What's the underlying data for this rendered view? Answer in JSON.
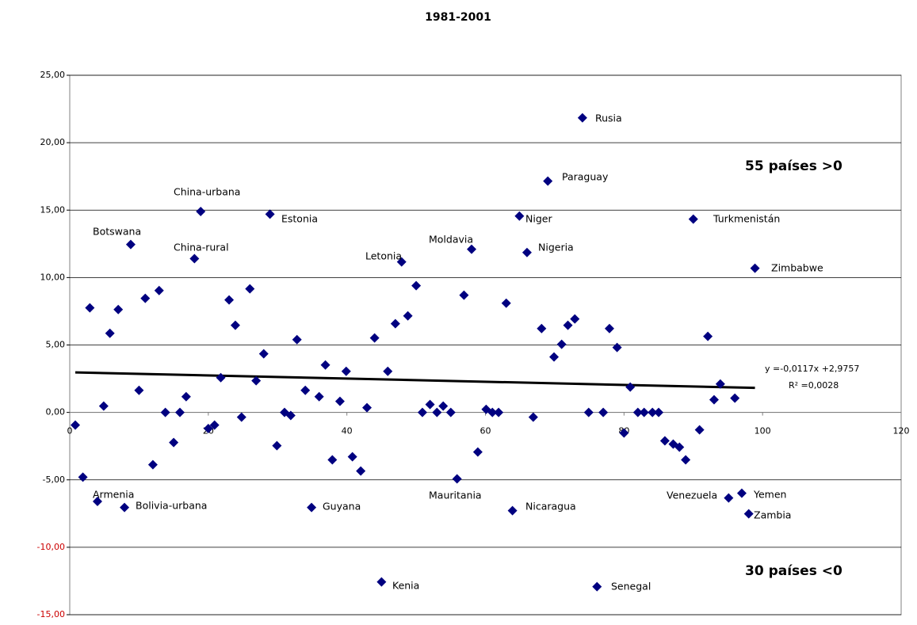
{
  "chart_data": {
    "type": "scatter",
    "title": "1981-2001",
    "x": [
      0.8,
      1.9,
      2.9,
      4.0,
      4.9,
      5.8,
      7.0,
      7.9,
      8.8,
      10.0,
      10.9,
      12.0,
      12.9,
      13.8,
      15.0,
      15.9,
      16.8,
      18.0,
      18.9,
      20.0,
      20.9,
      21.8,
      23.0,
      23.9,
      24.8,
      26.0,
      26.9,
      28.0,
      28.9,
      29.9,
      31.0,
      31.9,
      32.8,
      34.0,
      34.9,
      36.0,
      36.9,
      37.9,
      39.0,
      39.9,
      40.8,
      42.0,
      42.9,
      44.0,
      45.0,
      45.9,
      47.0,
      47.9,
      48.8,
      50.0,
      50.9,
      52.0,
      53.0,
      53.9,
      55.0,
      55.9,
      56.9,
      58.0,
      58.9,
      60.1,
      61.0,
      61.9,
      63.0,
      63.9,
      64.9,
      66.0,
      66.9,
      68.1,
      69.0,
      69.9,
      71.0,
      71.9,
      72.9,
      74.0,
      74.9,
      76.1,
      77.0,
      77.9,
      79.0,
      80.0,
      80.9,
      82.0,
      82.9,
      84.1,
      85.0,
      85.9,
      87.1,
      88.0,
      88.9,
      90.0,
      90.9,
      92.1,
      93.0,
      93.9,
      95.1,
      96.0,
      97.0,
      98.0,
      98.9
    ],
    "series": [
      {
        "color": "#000080",
        "values": [
          -0.94,
          -4.8,
          7.75,
          -6.6,
          0.47,
          5.87,
          7.63,
          -7.05,
          12.45,
          1.64,
          8.46,
          -3.88,
          9.04,
          0,
          -2.23,
          0,
          1.17,
          11.4,
          14.9,
          -1.2,
          -0.94,
          2.58,
          8.34,
          6.46,
          -0.35,
          9.16,
          2.35,
          4.35,
          14.7,
          -2.47,
          0,
          -0.23,
          5.4,
          1.64,
          -7.05,
          1.17,
          3.52,
          -3.52,
          0.82,
          3.05,
          -3.29,
          -4.35,
          0.35,
          5.52,
          -12.57,
          3.05,
          6.58,
          11.16,
          7.16,
          9.4,
          0,
          0.59,
          0,
          0.47,
          0,
          -4.93,
          8.69,
          12.1,
          -2.94,
          0.23,
          0,
          0,
          8.1,
          -7.28,
          14.56,
          11.86,
          -0.35,
          6.22,
          17.15,
          4.11,
          5.05,
          6.46,
          6.93,
          21.84,
          0,
          -12.92,
          0,
          6.22,
          4.82,
          -1.53,
          1.88,
          0,
          0,
          0,
          0,
          -2.11,
          -2.35,
          -2.58,
          -3.52,
          14.33,
          -1.29,
          5.64,
          0.94,
          2.11,
          -6.34,
          1.06,
          -5.99,
          -7.52,
          10.69
        ]
      }
    ],
    "xlim": [
      0,
      120
    ],
    "xticks": [
      0,
      20,
      40,
      60,
      80,
      100,
      120
    ],
    "ylim": [
      -15,
      25
    ],
    "yticks": [
      {
        "value": -15,
        "label": "-15,00"
      },
      {
        "value": -10,
        "label": "-10,00"
      },
      {
        "value": -5,
        "label": "-5,00"
      },
      {
        "value": 0,
        "label": "0,00"
      },
      {
        "value": 5,
        "label": "5,00"
      },
      {
        "value": 10,
        "label": "10,00"
      },
      {
        "value": 15,
        "label": "15,00"
      },
      {
        "value": 20,
        "label": "20,00"
      },
      {
        "value": 25,
        "label": "25,00"
      }
    ],
    "ytick_label_colors": [
      "#cc0000",
      "#cc0000",
      "#000000",
      "#000000",
      "#000000",
      "#000000",
      "#000000",
      "#000000",
      "#000000"
    ],
    "grid": true,
    "trendline": {
      "slope": -0.0117,
      "intercept": 2.9757,
      "equation": "y =-0,0117x +2,9757",
      "r_squared": "R² =0,0028"
    },
    "annotations": [
      "Rusia",
      "Paraguay",
      "China-urbana",
      "Estonia",
      "Niger",
      "Turkmenistán",
      "Botswana",
      "China-rural",
      "Nigeria",
      "Moldavia",
      "Letonia",
      "Zimbabwe",
      "Armenia",
      "Bolivia-urbana",
      "Guyana",
      "Mauritania",
      "Nicaragua",
      "Venezuela",
      "Yemen",
      "Zambia",
      "Kenia",
      "Senegal"
    ],
    "notes": [
      "55 países >0",
      "30 países <0"
    ]
  }
}
